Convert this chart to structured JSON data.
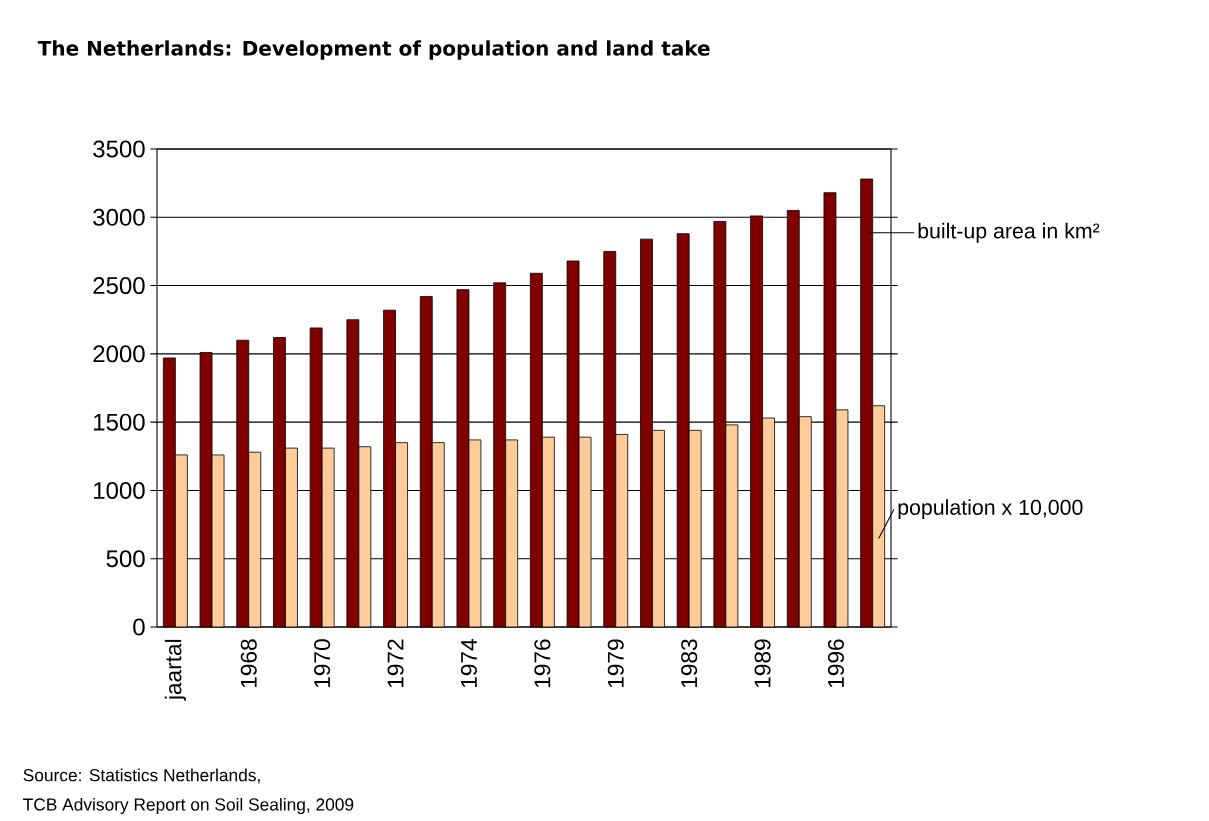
{
  "chart_data": {
    "type": "bar",
    "title": "The Netherlands: Development of population and land take",
    "categories": [
      "jaartal",
      null,
      "1968",
      null,
      "1970",
      null,
      "1972",
      null,
      "1974",
      null,
      "1976",
      null,
      "1979",
      null,
      "1983",
      null,
      "1989",
      null,
      "1996",
      null
    ],
    "series": [
      {
        "name": "built-up area in km²",
        "color": "#800000",
        "values": [
          1970,
          2010,
          2100,
          2120,
          2190,
          2250,
          2320,
          2420,
          2470,
          2520,
          2590,
          2680,
          2750,
          2840,
          2880,
          2970,
          3010,
          3050,
          3180,
          3280
        ]
      },
      {
        "name": "population x 10,000",
        "color": "#ffcc99",
        "values": [
          1260,
          1260,
          1280,
          1310,
          1310,
          1320,
          1350,
          1350,
          1370,
          1370,
          1390,
          1390,
          1410,
          1440,
          1440,
          1480,
          1530,
          1540,
          1590,
          1620
        ]
      }
    ],
    "ylim": [
      0,
      3500
    ],
    "yticks": [
      0,
      500,
      1000,
      1500,
      2000,
      2500,
      3000,
      3500
    ],
    "grid": "y",
    "legend": "right",
    "annotations": [
      "Source:  Statistics Netherlands,",
      "TCB Advisory Report on Soil Sealing, 2009"
    ]
  }
}
